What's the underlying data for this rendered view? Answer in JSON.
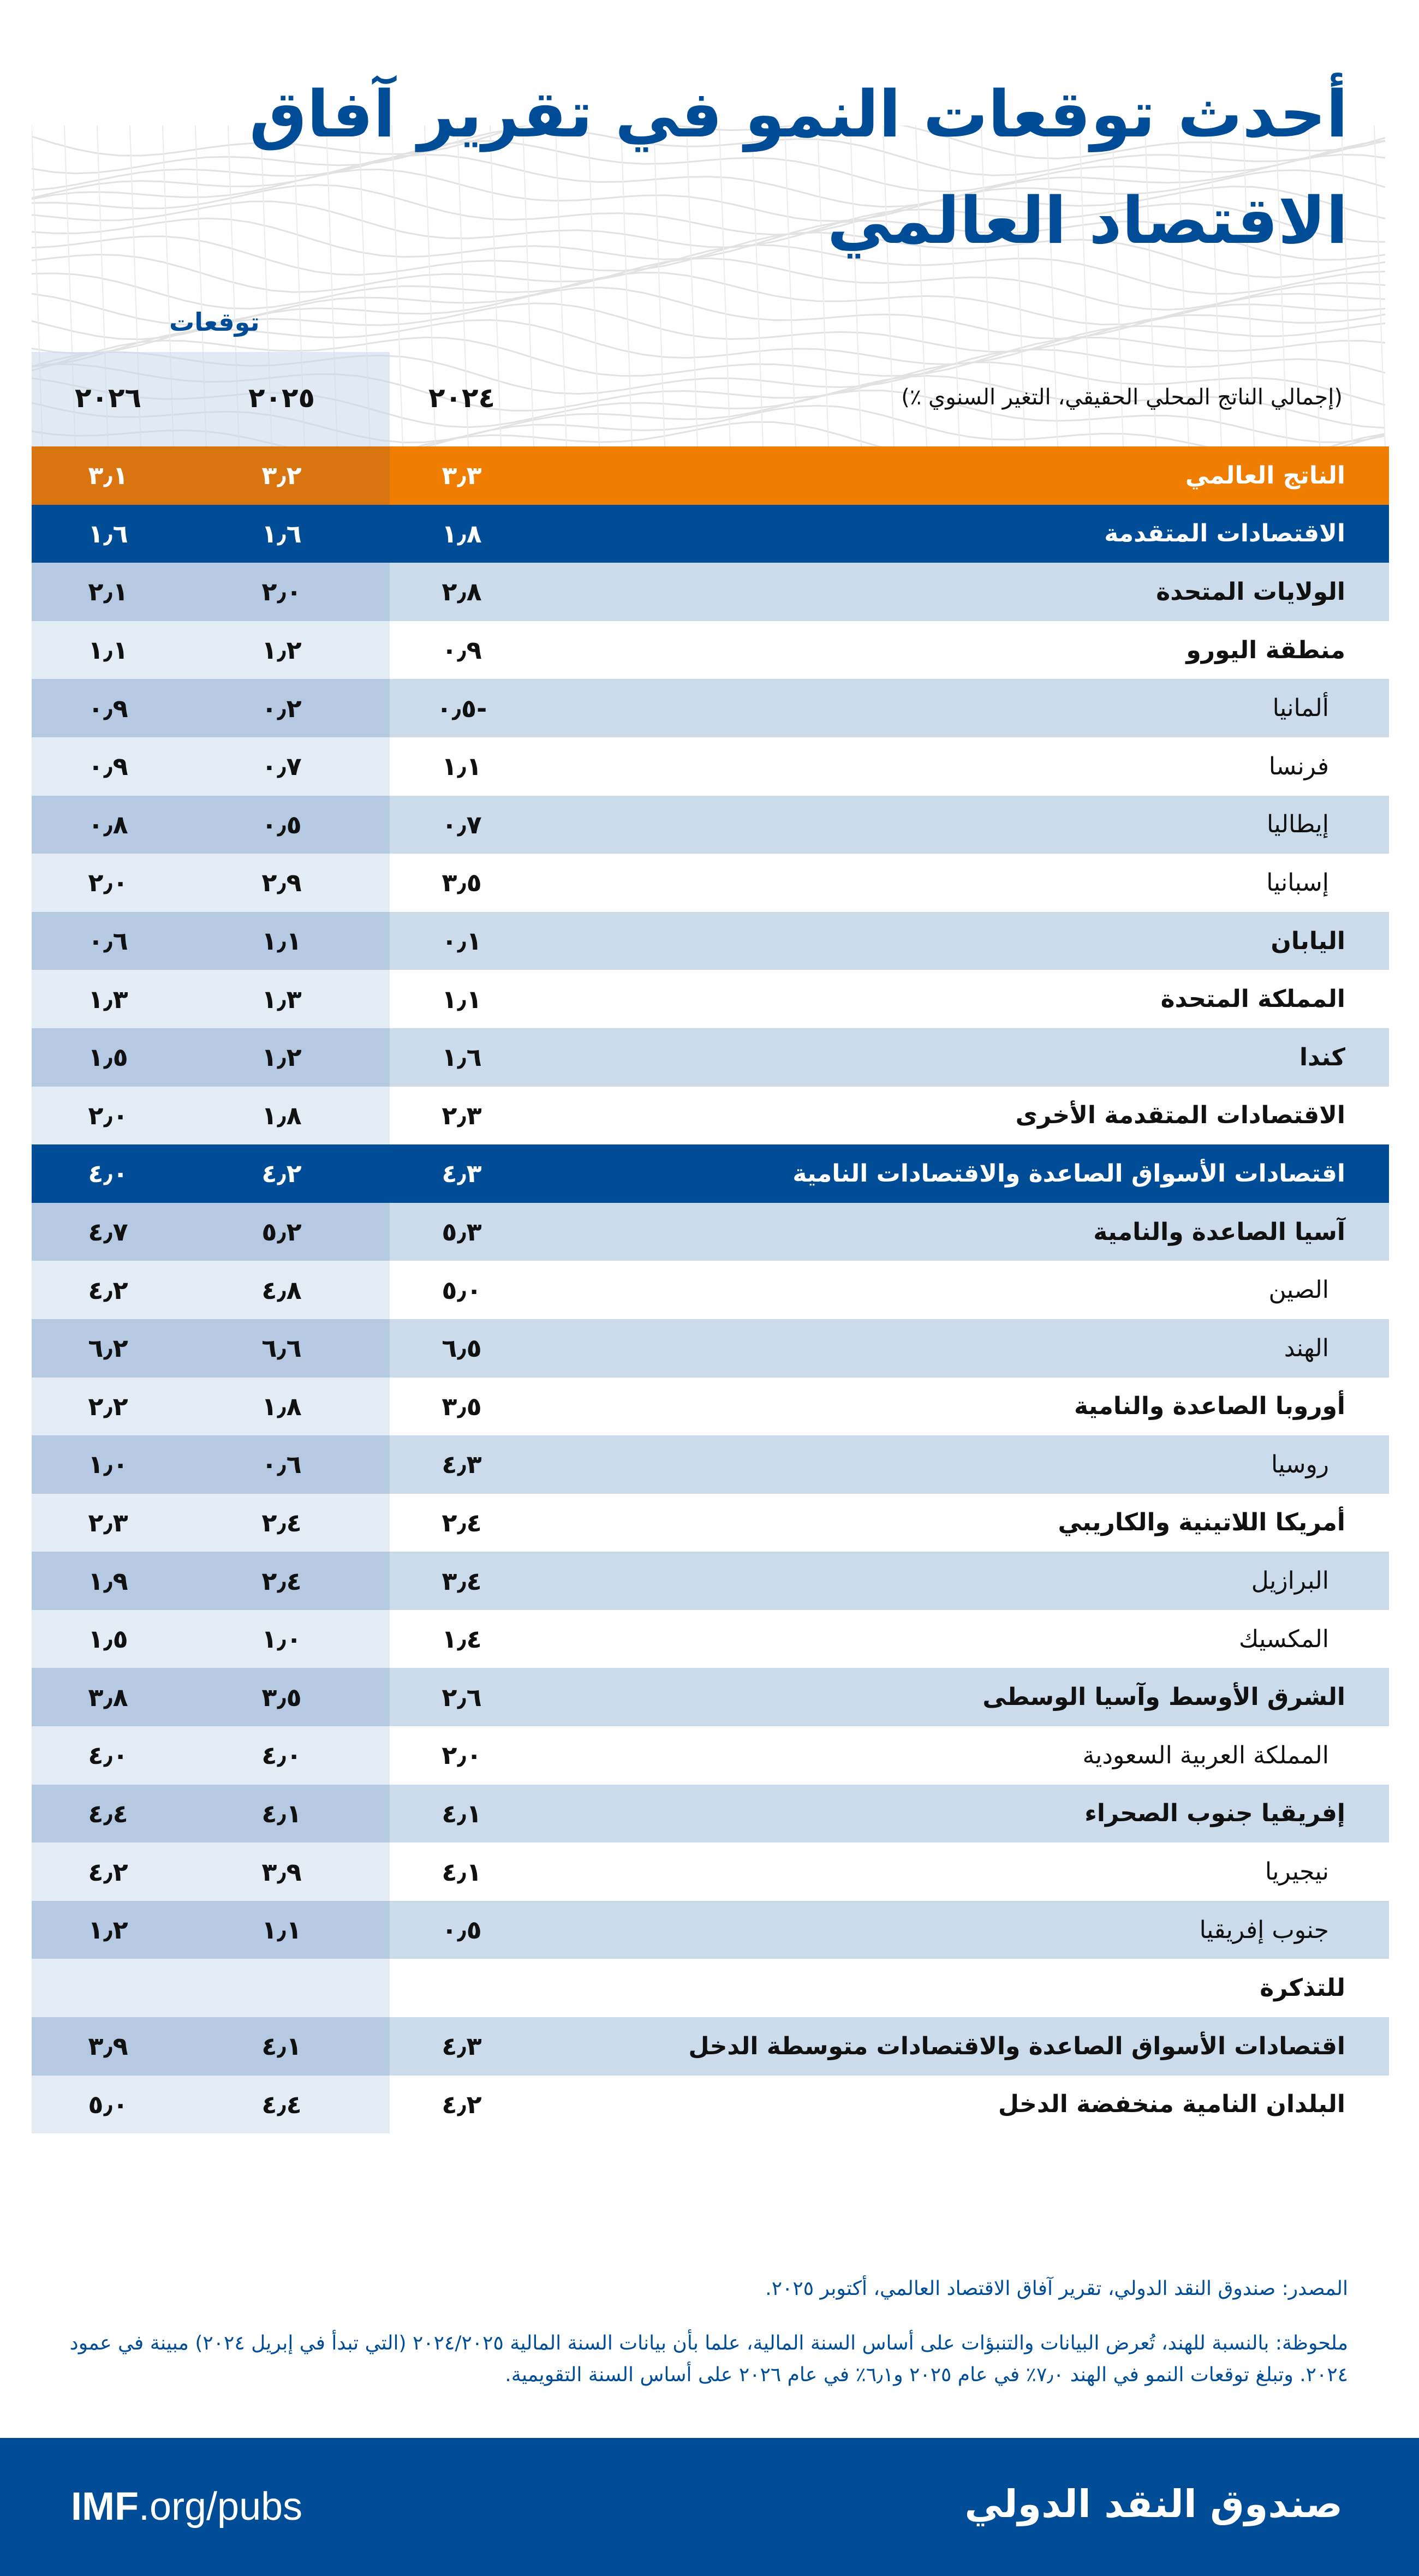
{
  "title": {
    "line1": "أحدث توقعات النمو في تقرير آفاق",
    "line2": "الاقتصاد العالمي"
  },
  "header": {
    "forecast_label": "توقعات",
    "units": "(إجمالي الناتج المحلي الحقيقي، التغير السنوي ٪)",
    "years": [
      "٢٠٢٤",
      "٢٠٢٥",
      "٢٠٢٦"
    ]
  },
  "colors": {
    "brand_blue": "#004c97",
    "orange": "#ef7d00",
    "row_shade": "#cbdbea",
    "forecast_shade": "#b5cae2"
  },
  "rows": [
    {
      "label": "الناتج العالمي",
      "type": "world",
      "values": [
        "٣٫٣",
        "٣٫٢",
        "٣٫١"
      ]
    },
    {
      "label": "الاقتصادات المتقدمة",
      "type": "group",
      "values": [
        "١٫٨",
        "١٫٦",
        "١٫٦"
      ]
    },
    {
      "label": "الولايات المتحدة",
      "type": "bold",
      "values": [
        "٢٫٨",
        "٢٫٠",
        "٢٫١"
      ]
    },
    {
      "label": "منطقة اليورو",
      "type": "bold",
      "values": [
        "٠٫٩",
        "١٫٢",
        "١٫١"
      ]
    },
    {
      "label": "ألمانيا",
      "type": "sub",
      "values": [
        "-٠٫٥",
        "٠٫٢",
        "٠٫٩"
      ]
    },
    {
      "label": "فرنسا",
      "type": "sub",
      "values": [
        "١٫١",
        "٠٫٧",
        "٠٫٩"
      ]
    },
    {
      "label": "إيطاليا",
      "type": "sub",
      "values": [
        "٠٫٧",
        "٠٫٥",
        "٠٫٨"
      ]
    },
    {
      "label": "إسبانيا",
      "type": "sub",
      "values": [
        "٣٫٥",
        "٢٫٩",
        "٢٫٠"
      ]
    },
    {
      "label": "اليابان",
      "type": "bold",
      "values": [
        "٠٫١",
        "١٫١",
        "٠٫٦"
      ]
    },
    {
      "label": "المملكة المتحدة",
      "type": "bold",
      "values": [
        "١٫١",
        "١٫٣",
        "١٫٣"
      ]
    },
    {
      "label": "كندا",
      "type": "bold",
      "values": [
        "١٫٦",
        "١٫٢",
        "١٫٥"
      ]
    },
    {
      "label": "الاقتصادات المتقدمة الأخرى",
      "type": "bold",
      "values": [
        "٢٫٣",
        "١٫٨",
        "٢٫٠"
      ]
    },
    {
      "label": "اقتصادات الأسواق الصاعدة والاقتصادات النامية",
      "type": "group",
      "values": [
        "٤٫٣",
        "٤٫٢",
        "٤٫٠"
      ]
    },
    {
      "label": "آسيا الصاعدة والنامية",
      "type": "bold",
      "values": [
        "٥٫٣",
        "٥٫٢",
        "٤٫٧"
      ]
    },
    {
      "label": "الصين",
      "type": "sub",
      "values": [
        "٥٫٠",
        "٤٫٨",
        "٤٫٢"
      ]
    },
    {
      "label": "الهند",
      "type": "sub",
      "values": [
        "٦٫٥",
        "٦٫٦",
        "٦٫٢"
      ]
    },
    {
      "label": "أوروبا الصاعدة والنامية",
      "type": "bold",
      "values": [
        "٣٫٥",
        "١٫٨",
        "٢٫٢"
      ]
    },
    {
      "label": "روسيا",
      "type": "sub",
      "values": [
        "٤٫٣",
        "٠٫٦",
        "١٫٠"
      ]
    },
    {
      "label": "أمريكا اللاتينية والكاريبي",
      "type": "bold",
      "values": [
        "٢٫٤",
        "٢٫٤",
        "٢٫٣"
      ]
    },
    {
      "label": "البرازيل",
      "type": "sub",
      "values": [
        "٣٫٤",
        "٢٫٤",
        "١٫٩"
      ]
    },
    {
      "label": "المكسيك",
      "type": "sub",
      "values": [
        "١٫٤",
        "١٫٠",
        "١٫٥"
      ]
    },
    {
      "label": "الشرق الأوسط وآسيا الوسطى",
      "type": "bold",
      "values": [
        "٢٫٦",
        "٣٫٥",
        "٣٫٨"
      ]
    },
    {
      "label": "المملكة العربية السعودية",
      "type": "sub",
      "values": [
        "٢٫٠",
        "٤٫٠",
        "٤٫٠"
      ]
    },
    {
      "label": "إفريقيا جنوب الصحراء",
      "type": "bold",
      "values": [
        "٤٫١",
        "٤٫١",
        "٤٫٤"
      ]
    },
    {
      "label": "نيجيريا",
      "type": "sub",
      "values": [
        "٤٫١",
        "٣٫٩",
        "٤٫٢"
      ]
    },
    {
      "label": "جنوب إفريقيا",
      "type": "sub",
      "values": [
        "٠٫٥",
        "١٫١",
        "١٫٢"
      ]
    },
    {
      "label": "للتذكرة",
      "type": "bold",
      "values": [
        "",
        "",
        ""
      ]
    },
    {
      "label": "اقتصادات الأسواق الصاعدة والاقتصادات متوسطة الدخل",
      "type": "bold",
      "values": [
        "٤٫٣",
        "٤٫١",
        "٣٫٩"
      ]
    },
    {
      "label": "البلدان النامية منخفضة الدخل",
      "type": "bold",
      "values": [
        "٤٫٢",
        "٤٫٤",
        "٥٫٠"
      ]
    }
  ],
  "notes": {
    "source": "المصدر: صندوق النقد الدولي، تقرير آفاق الاقتصاد العالمي، أكتوبر ٢٠٢٥.",
    "note": "ملحوظة: بالنسبة للهند، تُعرض البيانات والتنبؤات على أساس السنة المالية، علما بأن بيانات السنة المالية ٢٠٢٤/٢٠٢٥ (التي تبدأ في إبريل ٢٠٢٤) مبينة في عمود ٢٠٢٤. وتبلغ توقعات النمو في الهند ٧٫٠٪ في عام ٢٠٢٥ و٦٫١٪ في عام ٢٠٢٦ على أساس السنة التقويمية."
  },
  "footer": {
    "url_bold": "IMF",
    "url_rest": ".org/pubs",
    "org_name": "صندوق النقد الدولي"
  }
}
